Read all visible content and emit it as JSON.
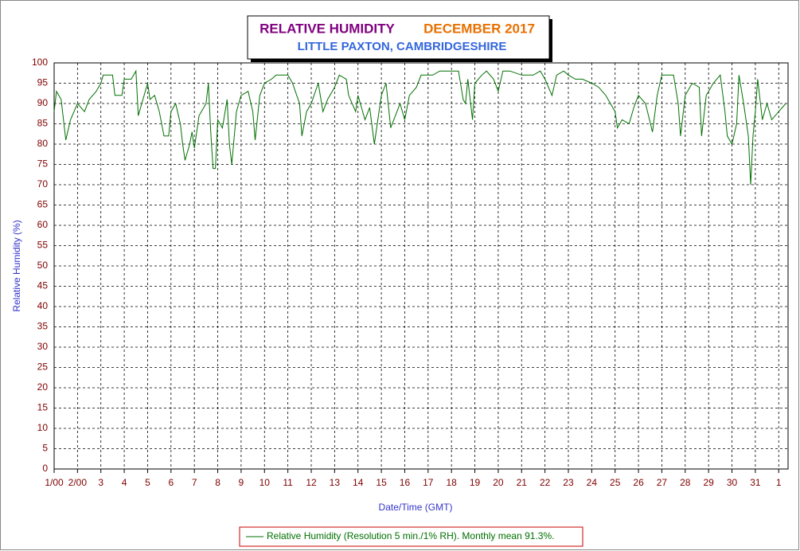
{
  "chart_data": {
    "type": "line",
    "title": "RELATIVE HUMIDITY",
    "title_period": "DECEMBER 2017",
    "subtitle": "LITTLE PAXTON, CAMBRIDGESHIRE",
    "x_label": "Date/Time (GMT)",
    "y_label": "Relative Humidity (%)",
    "x": [
      1.0,
      1.1,
      1.3,
      1.5,
      1.7,
      2.0,
      2.3,
      2.5,
      2.8,
      3.0,
      3.1,
      3.5,
      3.6,
      3.9,
      4.0,
      4.3,
      4.5,
      4.6,
      4.8,
      5.0,
      5.1,
      5.3,
      5.5,
      5.7,
      5.9,
      6.0,
      6.2,
      6.4,
      6.5,
      6.6,
      6.8,
      6.9,
      7.0,
      7.2,
      7.5,
      7.6,
      7.7,
      7.8,
      7.9,
      8.0,
      8.2,
      8.4,
      8.5,
      8.6,
      8.8,
      9.0,
      9.3,
      9.5,
      9.6,
      9.8,
      10.0,
      10.3,
      10.5,
      11.0,
      11.2,
      11.5,
      11.6,
      11.8,
      12.0,
      12.3,
      12.5,
      12.7,
      13.0,
      13.2,
      13.5,
      13.6,
      13.9,
      14.0,
      14.3,
      14.5,
      14.7,
      14.9,
      15.0,
      15.2,
      15.4,
      15.6,
      15.8,
      16.0,
      16.2,
      16.5,
      16.7,
      17.0,
      17.2,
      17.5,
      18.0,
      18.3,
      18.5,
      18.6,
      18.7,
      18.9,
      19.0,
      19.3,
      19.5,
      19.8,
      20.0,
      20.2,
      20.5,
      21.0,
      21.5,
      21.8,
      22.0,
      22.3,
      22.5,
      22.8,
      23.0,
      23.3,
      23.6,
      24.0,
      24.3,
      24.6,
      25.0,
      25.1,
      25.3,
      25.6,
      25.8,
      26.0,
      26.3,
      26.6,
      26.8,
      27.0,
      27.5,
      27.7,
      27.8,
      28.0,
      28.3,
      28.6,
      28.7,
      28.9,
      29.2,
      29.5,
      29.7,
      29.8,
      30.0,
      30.2,
      30.3,
      30.5,
      30.7,
      30.8,
      30.9,
      31.0,
      31.1,
      31.3,
      31.5,
      31.7,
      32.0,
      32.3
    ],
    "series": [
      {
        "name": "Relative Humidity (Resolution 5 min./1% RH). Monthly mean 91.3%.",
        "color": "#007000",
        "values": [
          88,
          93,
          91,
          81,
          86,
          90,
          88,
          91,
          93,
          95,
          97,
          97,
          92,
          92,
          96,
          96,
          98,
          87,
          91,
          95,
          91,
          92,
          88,
          82,
          82,
          88,
          90,
          85,
          80,
          76,
          80,
          83,
          79,
          87,
          90,
          95,
          83,
          74,
          74,
          86,
          84,
          91,
          80,
          75,
          88,
          92,
          93,
          88,
          81,
          92,
          95,
          96,
          97,
          97,
          95,
          90,
          82,
          88,
          90,
          95,
          88,
          91,
          94,
          97,
          96,
          92,
          88,
          92,
          86,
          89,
          80,
          88,
          92,
          95,
          84,
          87,
          90,
          86,
          92,
          94,
          97,
          97,
          97,
          98,
          98,
          98,
          91,
          90,
          96,
          86,
          95,
          97,
          98,
          96,
          93,
          98,
          98,
          97,
          97,
          98,
          96,
          92,
          97,
          98,
          97,
          96,
          96,
          95,
          94,
          92,
          88,
          84,
          86,
          85,
          89,
          92,
          90,
          83,
          92,
          97,
          97,
          90,
          82,
          92,
          95,
          94,
          82,
          92,
          95,
          97,
          88,
          82,
          80,
          85,
          97,
          90,
          82,
          70,
          82,
          88,
          96,
          86,
          90,
          86,
          88,
          90
        ]
      }
    ],
    "xlim": [
      1,
      32.4
    ],
    "xticks": [
      {
        "value": 1,
        "label": "1/00"
      },
      {
        "value": 2,
        "label": "2/00"
      },
      3,
      4,
      5,
      6,
      7,
      8,
      9,
      10,
      11,
      12,
      13,
      14,
      15,
      16,
      17,
      18,
      19,
      20,
      21,
      22,
      23,
      24,
      25,
      26,
      27,
      28,
      29,
      30,
      31,
      {
        "value": 32,
        "label": "1"
      }
    ],
    "ylim": [
      0,
      100
    ],
    "yticks": [
      0,
      5,
      10,
      15,
      20,
      25,
      30,
      35,
      40,
      45,
      50,
      55,
      60,
      65,
      70,
      75,
      80,
      85,
      90,
      95,
      100
    ],
    "grid": true
  }
}
